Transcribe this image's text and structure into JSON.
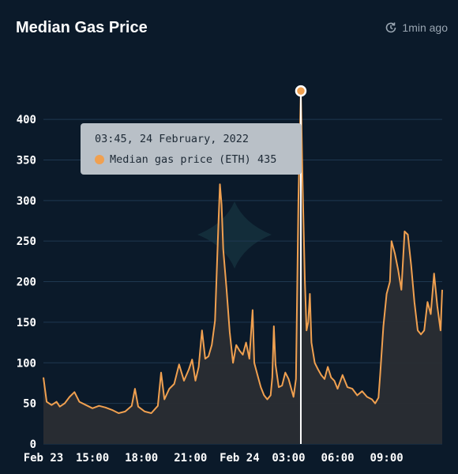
{
  "header": {
    "title": "Median Gas Price",
    "updated": "1min ago",
    "updated_icon": "refresh-clock-icon"
  },
  "tooltip": {
    "timestamp": "03:45, 24 February, 2022",
    "series_label": "Median gas price (ETH)",
    "value": "435"
  },
  "colors": {
    "background": "#0b1a2a",
    "line": "#f0a050",
    "area": "#2a2d33",
    "grid": "#1f3850"
  },
  "chart_data": {
    "type": "area",
    "title": "Median Gas Price",
    "xlabel": "",
    "ylabel": "",
    "ylim": [
      0,
      440
    ],
    "yticks": [
      0,
      50,
      100,
      150,
      200,
      250,
      300,
      350,
      400
    ],
    "grid": true,
    "xticks": [
      {
        "x": 0,
        "label": "Feb 23"
      },
      {
        "x": 3,
        "label": "15:00"
      },
      {
        "x": 6,
        "label": "18:00"
      },
      {
        "x": 9,
        "label": "21:00"
      },
      {
        "x": 12,
        "label": "Feb 24"
      },
      {
        "x": 15,
        "label": "03:00"
      },
      {
        "x": 18,
        "label": "06:00"
      },
      {
        "x": 21,
        "label": "09:00"
      }
    ],
    "x_unit": "hours since Feb 23 12:00",
    "highlight": {
      "x": 15.75,
      "y": 435
    },
    "series": [
      {
        "name": "Median gas price (ETH)",
        "points": [
          [
            0,
            82
          ],
          [
            0.2,
            52
          ],
          [
            0.5,
            48
          ],
          [
            0.8,
            52
          ],
          [
            1.0,
            46
          ],
          [
            1.3,
            50
          ],
          [
            1.6,
            58
          ],
          [
            1.9,
            64
          ],
          [
            2.2,
            52
          ],
          [
            2.6,
            48
          ],
          [
            3.0,
            44
          ],
          [
            3.4,
            47
          ],
          [
            3.8,
            45
          ],
          [
            4.2,
            42
          ],
          [
            4.6,
            38
          ],
          [
            5.0,
            40
          ],
          [
            5.4,
            47
          ],
          [
            5.6,
            68
          ],
          [
            5.8,
            46
          ],
          [
            6.2,
            40
          ],
          [
            6.6,
            38
          ],
          [
            7.0,
            47
          ],
          [
            7.2,
            88
          ],
          [
            7.4,
            55
          ],
          [
            7.7,
            68
          ],
          [
            8.0,
            74
          ],
          [
            8.3,
            98
          ],
          [
            8.6,
            78
          ],
          [
            8.9,
            92
          ],
          [
            9.1,
            104
          ],
          [
            9.3,
            78
          ],
          [
            9.5,
            95
          ],
          [
            9.7,
            140
          ],
          [
            9.9,
            105
          ],
          [
            10.1,
            108
          ],
          [
            10.3,
            122
          ],
          [
            10.5,
            152
          ],
          [
            10.7,
            268
          ],
          [
            10.8,
            320
          ],
          [
            10.9,
            295
          ],
          [
            11.0,
            240
          ],
          [
            11.2,
            192
          ],
          [
            11.4,
            138
          ],
          [
            11.6,
            100
          ],
          [
            11.8,
            122
          ],
          [
            12.0,
            115
          ],
          [
            12.2,
            110
          ],
          [
            12.4,
            125
          ],
          [
            12.6,
            105
          ],
          [
            12.8,
            165
          ],
          [
            12.9,
            100
          ],
          [
            13.1,
            85
          ],
          [
            13.3,
            70
          ],
          [
            13.5,
            60
          ],
          [
            13.7,
            55
          ],
          [
            13.9,
            60
          ],
          [
            14.0,
            82
          ],
          [
            14.1,
            145
          ],
          [
            14.2,
            98
          ],
          [
            14.4,
            70
          ],
          [
            14.6,
            72
          ],
          [
            14.8,
            88
          ],
          [
            15.0,
            80
          ],
          [
            15.3,
            58
          ],
          [
            15.45,
            80
          ],
          [
            15.6,
            300
          ],
          [
            15.75,
            435
          ],
          [
            15.85,
            330
          ],
          [
            16.0,
            200
          ],
          [
            16.1,
            140
          ],
          [
            16.2,
            150
          ],
          [
            16.3,
            185
          ],
          [
            16.4,
            125
          ],
          [
            16.6,
            100
          ],
          [
            16.8,
            92
          ],
          [
            17.0,
            85
          ],
          [
            17.2,
            80
          ],
          [
            17.4,
            95
          ],
          [
            17.6,
            82
          ],
          [
            17.8,
            78
          ],
          [
            18.0,
            68
          ],
          [
            18.3,
            85
          ],
          [
            18.6,
            70
          ],
          [
            18.9,
            68
          ],
          [
            19.2,
            60
          ],
          [
            19.5,
            65
          ],
          [
            19.8,
            58
          ],
          [
            20.1,
            55
          ],
          [
            20.3,
            50
          ],
          [
            20.5,
            57
          ],
          [
            20.6,
            85
          ],
          [
            20.8,
            145
          ],
          [
            21.0,
            185
          ],
          [
            21.2,
            200
          ],
          [
            21.3,
            250
          ],
          [
            21.5,
            235
          ],
          [
            21.7,
            215
          ],
          [
            21.9,
            190
          ],
          [
            22.1,
            262
          ],
          [
            22.3,
            258
          ],
          [
            22.5,
            220
          ],
          [
            22.7,
            175
          ],
          [
            22.9,
            140
          ],
          [
            23.1,
            135
          ],
          [
            23.3,
            140
          ],
          [
            23.5,
            175
          ],
          [
            23.7,
            160
          ],
          [
            23.9,
            210
          ],
          [
            24.1,
            170
          ],
          [
            24.3,
            140
          ],
          [
            24.4,
            190
          ]
        ]
      }
    ]
  }
}
